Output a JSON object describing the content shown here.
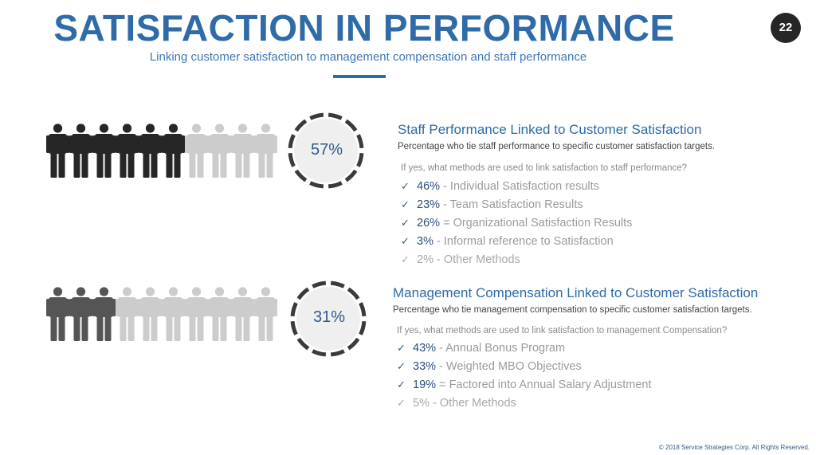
{
  "header": {
    "title": "SATISFACTION IN PERFORMANCE",
    "subtitle": "Linking customer satisfaction to management compensation and staff performance",
    "page_number": "22"
  },
  "sections": [
    {
      "percent_label": "57%",
      "people_total": 10,
      "people_highlighted": 6,
      "highlight_color": "#262626",
      "title": "Staff Performance Linked to Customer Satisfaction",
      "description": "Percentage who tie staff performance to specific customer satisfaction targets.",
      "question": "If yes, what methods are used  to link satisfaction to staff performance?",
      "methods": [
        {
          "pct": "46%",
          "sep": " - ",
          "text": "Individual Satisfaction results",
          "muted": false
        },
        {
          "pct": "23%",
          "sep": " - ",
          "text": "Team Satisfaction Results",
          "muted": false
        },
        {
          "pct": "26%",
          "sep": " = ",
          "text": "Organizational Satisfaction Results",
          "muted": false
        },
        {
          "pct": "3%",
          "sep": " - ",
          "text": "Informal reference to Satisfaction",
          "muted": false
        },
        {
          "pct": "2%",
          "sep": " - ",
          "text": "Other Methods",
          "muted": true
        }
      ]
    },
    {
      "percent_label": "31%",
      "people_total": 10,
      "people_highlighted": 3,
      "highlight_color": "#555555",
      "title": "Management Compensation Linked to Customer Satisfaction",
      "description": "Percentage who tie management compensation to specific customer satisfaction targets.",
      "question": "If yes, what methods are used  to link satisfaction to management Compensation?",
      "methods": [
        {
          "pct": "43%",
          "sep": " - ",
          "text": "Annual Bonus Program",
          "muted": false
        },
        {
          "pct": "33%",
          "sep": " - ",
          "text": "Weighted MBO Objectives",
          "muted": false
        },
        {
          "pct": "19%",
          "sep": " = ",
          "text": "Factored into Annual Salary Adjustment",
          "muted": false
        },
        {
          "pct": "5%",
          "sep": " - ",
          "text": "Other Methods",
          "muted": true
        }
      ]
    }
  ],
  "footer": {
    "copyright": "© 2018 Service Strategies Corp. All Rights Reserved."
  },
  "colors": {
    "accent": "#2e6ba8",
    "inactive_person": "#cccccc",
    "ring": "#3a3a3a"
  }
}
